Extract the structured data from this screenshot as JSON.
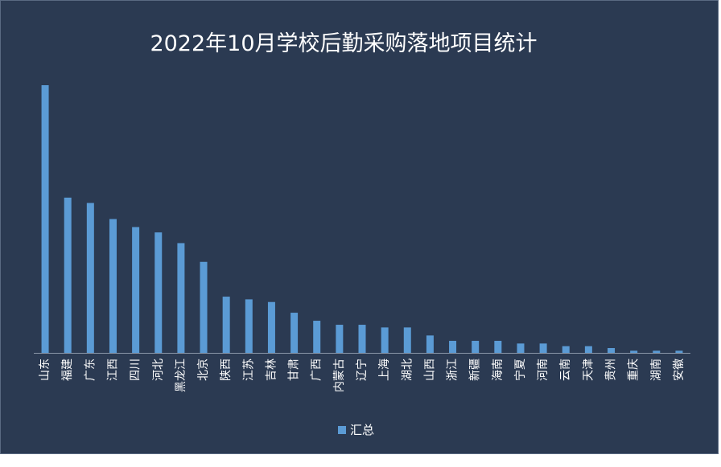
{
  "chart_data": {
    "type": "bar",
    "title": "2022年10月学校后勤采购落地项目统计",
    "xlabel": "",
    "ylabel": "",
    "ylim": [
      0,
      100
    ],
    "grid": false,
    "legend_position": "bottom",
    "categories": [
      "山东",
      "福建",
      "广东",
      "江西",
      "四川",
      "河北",
      "黑龙江",
      "北京",
      "陕西",
      "江苏",
      "吉林",
      "甘肃",
      "广西",
      "内蒙古",
      "辽宁",
      "上海",
      "湖北",
      "山西",
      "浙江",
      "新疆",
      "海南",
      "宁夏",
      "河南",
      "云南",
      "天津",
      "贵州",
      "重庆",
      "湖南",
      "安徽"
    ],
    "series": [
      {
        "name": "汇总",
        "color": "#5b9bd5",
        "values": [
          100,
          58,
          56,
          50,
          47,
          45,
          41,
          34,
          21,
          20,
          19,
          15,
          12,
          10.5,
          10.5,
          9.5,
          9.5,
          6.5,
          4.5,
          4.5,
          4.5,
          3.5,
          3.5,
          2.5,
          2.5,
          1.8,
          0.8,
          0.8,
          0.8
        ]
      }
    ]
  },
  "colors": {
    "background": "#2b3a52",
    "bar": "#5b9bd5",
    "axis": "#8a96a8",
    "text": "#ffffff"
  }
}
